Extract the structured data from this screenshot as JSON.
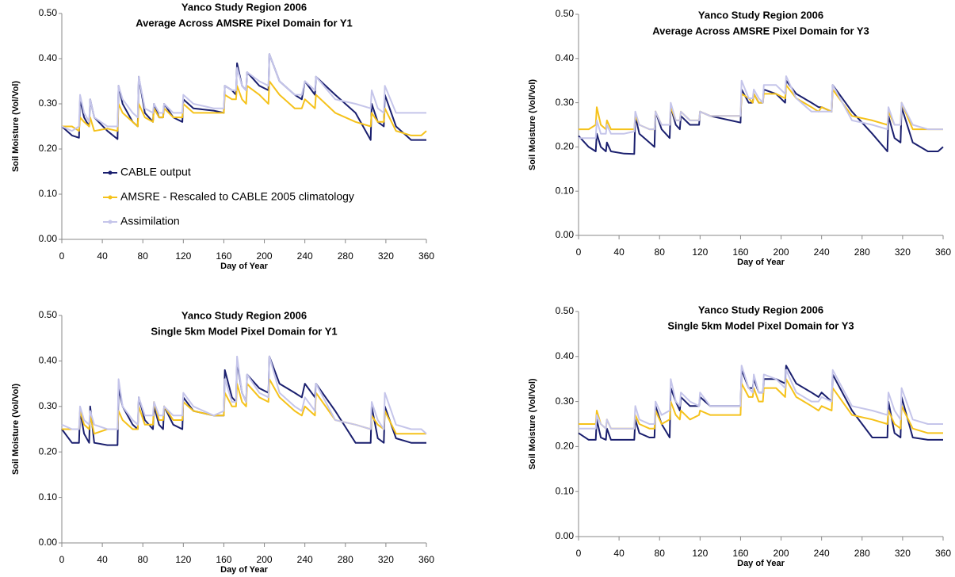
{
  "chart_data": [
    {
      "type": "line",
      "title": "Yanco Study Region 2006",
      "subtitle": "Average Across AMSRE Pixel Domain for Y1",
      "xlabel": "Day of Year",
      "ylabel": "Soil Moisture (Vol/Vol)",
      "legend": "left",
      "grid": false,
      "xlim": [
        0,
        360
      ],
      "xticks": [
        0,
        40,
        80,
        120,
        160,
        200,
        240,
        280,
        320,
        360
      ],
      "ylim": [
        0,
        0.5
      ],
      "yticks": [
        {
          "value": 0,
          "label": "0.00"
        },
        {
          "value": 0.1,
          "label": "0.10"
        },
        {
          "value": 0.2,
          "label": "0.20"
        },
        {
          "value": 0.3,
          "label": "0.30"
        },
        {
          "value": 0.4,
          "label": "0.40"
        },
        {
          "value": 0.5,
          "label": "0.50"
        }
      ],
      "x": [
        0,
        10,
        17,
        18,
        22,
        27,
        28,
        32,
        45,
        55,
        56,
        60,
        70,
        75,
        76,
        82,
        90,
        91,
        96,
        100,
        101,
        110,
        119,
        120,
        130,
        150,
        160,
        161,
        168,
        172,
        173,
        178,
        182,
        183,
        195,
        204,
        205,
        215,
        230,
        237,
        240,
        250,
        251,
        270,
        290,
        305,
        306,
        312,
        318,
        319,
        330,
        345,
        355,
        360
      ],
      "series": [
        {
          "name": "CABLE output",
          "color": "#1a1f6e",
          "values": [
            0.25,
            0.23,
            0.225,
            0.31,
            0.27,
            0.25,
            0.31,
            0.27,
            0.24,
            0.222,
            0.34,
            0.3,
            0.26,
            0.25,
            0.36,
            0.28,
            0.26,
            0.3,
            0.27,
            0.27,
            0.3,
            0.27,
            0.26,
            0.31,
            0.29,
            0.285,
            0.28,
            0.34,
            0.33,
            0.32,
            0.39,
            0.34,
            0.33,
            0.37,
            0.34,
            0.33,
            0.41,
            0.35,
            0.32,
            0.31,
            0.35,
            0.32,
            0.36,
            0.32,
            0.28,
            0.22,
            0.3,
            0.26,
            0.25,
            0.32,
            0.25,
            0.22,
            0.22,
            0.22
          ]
        },
        {
          "name": "AMSRE - Rescaled to CABLE 2005 climatology",
          "color": "#f5c21b",
          "values": [
            0.25,
            0.25,
            0.24,
            0.27,
            0.26,
            0.25,
            0.27,
            0.24,
            0.245,
            0.24,
            0.3,
            0.28,
            0.26,
            0.25,
            0.3,
            0.27,
            0.26,
            0.29,
            0.27,
            0.27,
            0.29,
            0.27,
            0.27,
            0.3,
            0.28,
            0.28,
            0.28,
            0.32,
            0.31,
            0.31,
            0.34,
            0.31,
            0.3,
            0.34,
            0.32,
            0.3,
            0.35,
            0.32,
            0.29,
            0.29,
            0.31,
            0.29,
            0.32,
            0.28,
            0.26,
            0.25,
            0.28,
            0.26,
            0.26,
            0.29,
            0.24,
            0.23,
            0.23,
            0.24
          ]
        },
        {
          "name": "Assimilation",
          "color": "#c5c5ea",
          "values": [
            0.25,
            0.24,
            0.25,
            0.32,
            0.28,
            0.26,
            0.31,
            0.27,
            0.25,
            0.25,
            0.34,
            0.31,
            0.28,
            0.27,
            0.36,
            0.29,
            0.28,
            0.3,
            0.28,
            0.28,
            0.3,
            0.28,
            0.28,
            0.32,
            0.3,
            0.29,
            0.29,
            0.34,
            0.33,
            0.33,
            0.38,
            0.34,
            0.33,
            0.37,
            0.35,
            0.34,
            0.41,
            0.35,
            0.32,
            0.32,
            0.35,
            0.33,
            0.36,
            0.31,
            0.3,
            0.29,
            0.33,
            0.29,
            0.28,
            0.34,
            0.28,
            0.28,
            0.28,
            0.28
          ]
        }
      ]
    },
    {
      "type": "line",
      "title": "Yanco Study Region 2006",
      "subtitle": "Average Across AMSRE Pixel Domain for Y3",
      "xlabel": "Day of Year",
      "ylabel": "Soil Moisture (Vol/Vol)",
      "grid": false,
      "xlim": [
        0,
        360
      ],
      "xticks": [
        0,
        40,
        80,
        120,
        160,
        200,
        240,
        280,
        320,
        360
      ],
      "ylim": [
        0,
        0.5
      ],
      "yticks": [
        {
          "value": 0,
          "label": "0.00"
        },
        {
          "value": 0.1,
          "label": "0.10"
        },
        {
          "value": 0.2,
          "label": "0.20"
        },
        {
          "value": 0.3,
          "label": "0.30"
        },
        {
          "value": 0.4,
          "label": "0.40"
        },
        {
          "value": 0.5,
          "label": "0.50"
        }
      ],
      "x": [
        0,
        10,
        17,
        18,
        22,
        27,
        28,
        32,
        45,
        55,
        56,
        60,
        70,
        75,
        76,
        82,
        90,
        91,
        96,
        100,
        101,
        110,
        119,
        120,
        130,
        150,
        160,
        161,
        168,
        172,
        173,
        178,
        182,
        183,
        195,
        204,
        205,
        215,
        230,
        237,
        240,
        250,
        251,
        270,
        290,
        305,
        306,
        312,
        318,
        319,
        330,
        345,
        355,
        360
      ],
      "series": [
        {
          "color": "#1a1f6e",
          "values": [
            0.225,
            0.2,
            0.19,
            0.23,
            0.2,
            0.19,
            0.21,
            0.19,
            0.185,
            0.184,
            0.27,
            0.23,
            0.21,
            0.2,
            0.28,
            0.24,
            0.22,
            0.29,
            0.25,
            0.24,
            0.27,
            0.25,
            0.25,
            0.28,
            0.27,
            0.26,
            0.255,
            0.33,
            0.3,
            0.3,
            0.32,
            0.3,
            0.3,
            0.33,
            0.32,
            0.3,
            0.35,
            0.32,
            0.3,
            0.29,
            0.29,
            0.28,
            0.34,
            0.28,
            0.23,
            0.19,
            0.27,
            0.22,
            0.21,
            0.29,
            0.21,
            0.19,
            0.19,
            0.2
          ]
        },
        {
          "color": "#f5c21b",
          "values": [
            0.24,
            0.24,
            0.25,
            0.29,
            0.25,
            0.24,
            0.26,
            0.24,
            0.24,
            0.24,
            0.27,
            0.25,
            0.24,
            0.24,
            0.28,
            0.25,
            0.25,
            0.29,
            0.26,
            0.26,
            0.28,
            0.26,
            0.26,
            0.28,
            0.27,
            0.27,
            0.27,
            0.32,
            0.31,
            0.3,
            0.32,
            0.3,
            0.3,
            0.32,
            0.32,
            0.31,
            0.34,
            0.31,
            0.29,
            0.28,
            0.29,
            0.28,
            0.33,
            0.27,
            0.26,
            0.25,
            0.28,
            0.25,
            0.25,
            0.3,
            0.24,
            0.24,
            0.24,
            0.24
          ]
        },
        {
          "color": "#c5c5ea",
          "values": [
            0.22,
            0.22,
            0.22,
            0.26,
            0.23,
            0.23,
            0.25,
            0.23,
            0.23,
            0.235,
            0.28,
            0.25,
            0.24,
            0.24,
            0.28,
            0.25,
            0.25,
            0.3,
            0.26,
            0.26,
            0.28,
            0.26,
            0.26,
            0.28,
            0.27,
            0.27,
            0.27,
            0.35,
            0.31,
            0.31,
            0.33,
            0.31,
            0.3,
            0.34,
            0.34,
            0.32,
            0.36,
            0.31,
            0.28,
            0.28,
            0.28,
            0.28,
            0.34,
            0.26,
            0.25,
            0.24,
            0.29,
            0.25,
            0.25,
            0.3,
            0.25,
            0.24,
            0.24,
            0.24
          ]
        }
      ]
    },
    {
      "type": "line",
      "title": "Yanco Study Region 2006",
      "subtitle": "Single 5km Model Pixel Domain for Y1",
      "xlabel": "Day of Year",
      "ylabel": "Soil Moisture (Vol/Vol)",
      "grid": false,
      "xlim": [
        0,
        360
      ],
      "xticks": [
        0,
        40,
        80,
        120,
        160,
        200,
        240,
        280,
        320,
        360
      ],
      "ylim": [
        0,
        0.5
      ],
      "yticks": [
        {
          "value": 0,
          "label": "0.00"
        },
        {
          "value": 0.1,
          "label": "0.10"
        },
        {
          "value": 0.2,
          "label": "0.20"
        },
        {
          "value": 0.3,
          "label": "0.30"
        },
        {
          "value": 0.4,
          "label": "0.40"
        },
        {
          "value": 0.5,
          "label": "0.50"
        }
      ],
      "x": [
        0,
        10,
        17,
        18,
        22,
        27,
        28,
        32,
        45,
        55,
        56,
        60,
        70,
        75,
        76,
        82,
        90,
        91,
        96,
        100,
        101,
        110,
        119,
        120,
        130,
        150,
        160,
        161,
        168,
        172,
        173,
        178,
        182,
        183,
        195,
        204,
        205,
        215,
        230,
        237,
        240,
        250,
        251,
        270,
        290,
        305,
        306,
        312,
        318,
        319,
        330,
        345,
        355,
        360
      ],
      "series": [
        {
          "color": "#1a1f6e",
          "values": [
            0.25,
            0.22,
            0.22,
            0.29,
            0.24,
            0.22,
            0.3,
            0.22,
            0.215,
            0.215,
            0.34,
            0.3,
            0.26,
            0.25,
            0.32,
            0.27,
            0.25,
            0.3,
            0.26,
            0.25,
            0.3,
            0.26,
            0.25,
            0.32,
            0.29,
            0.28,
            0.28,
            0.38,
            0.32,
            0.31,
            0.4,
            0.33,
            0.31,
            0.37,
            0.34,
            0.33,
            0.41,
            0.35,
            0.33,
            0.32,
            0.35,
            0.32,
            0.35,
            0.29,
            0.22,
            0.22,
            0.3,
            0.23,
            0.22,
            0.3,
            0.23,
            0.22,
            0.22,
            0.22
          ]
        },
        {
          "color": "#f5c21b",
          "values": [
            0.25,
            0.25,
            0.25,
            0.29,
            0.26,
            0.25,
            0.28,
            0.24,
            0.25,
            0.25,
            0.29,
            0.27,
            0.25,
            0.25,
            0.3,
            0.26,
            0.26,
            0.31,
            0.27,
            0.27,
            0.3,
            0.27,
            0.27,
            0.31,
            0.29,
            0.28,
            0.28,
            0.33,
            0.3,
            0.3,
            0.35,
            0.31,
            0.3,
            0.35,
            0.32,
            0.31,
            0.36,
            0.32,
            0.29,
            0.28,
            0.3,
            0.28,
            0.33,
            0.27,
            0.26,
            0.25,
            0.28,
            0.26,
            0.25,
            0.29,
            0.24,
            0.24,
            0.24,
            0.24
          ]
        },
        {
          "color": "#c5c5ea",
          "values": [
            0.26,
            0.25,
            0.25,
            0.3,
            0.27,
            0.26,
            0.29,
            0.26,
            0.25,
            0.25,
            0.36,
            0.3,
            0.27,
            0.26,
            0.32,
            0.28,
            0.28,
            0.31,
            0.28,
            0.28,
            0.3,
            0.28,
            0.28,
            0.33,
            0.3,
            0.28,
            0.29,
            0.36,
            0.31,
            0.31,
            0.41,
            0.33,
            0.31,
            0.37,
            0.33,
            0.32,
            0.41,
            0.33,
            0.3,
            0.29,
            0.32,
            0.29,
            0.35,
            0.27,
            0.26,
            0.25,
            0.31,
            0.27,
            0.25,
            0.33,
            0.26,
            0.25,
            0.25,
            0.24
          ]
        }
      ]
    },
    {
      "type": "line",
      "title": "Yanco Study Region 2006",
      "subtitle": "Single 5km Model Pixel Domain for Y3",
      "xlabel": "Day of Year",
      "ylabel": "Soil Moisture (Vol/Vol)",
      "grid": false,
      "xlim": [
        0,
        360
      ],
      "xticks": [
        0,
        40,
        80,
        120,
        160,
        200,
        240,
        280,
        320,
        360
      ],
      "ylim": [
        0,
        0.5
      ],
      "yticks": [
        {
          "value": 0,
          "label": "0.00"
        },
        {
          "value": 0.1,
          "label": "0.10"
        },
        {
          "value": 0.2,
          "label": "0.20"
        },
        {
          "value": 0.3,
          "label": "0.30"
        },
        {
          "value": 0.4,
          "label": "0.40"
        },
        {
          "value": 0.5,
          "label": "0.50"
        }
      ],
      "x": [
        0,
        10,
        17,
        18,
        22,
        27,
        28,
        32,
        45,
        55,
        56,
        60,
        70,
        75,
        76,
        82,
        90,
        91,
        96,
        100,
        101,
        110,
        119,
        120,
        130,
        150,
        160,
        161,
        168,
        172,
        173,
        178,
        182,
        183,
        195,
        204,
        205,
        215,
        230,
        237,
        240,
        250,
        251,
        270,
        290,
        305,
        306,
        312,
        318,
        319,
        330,
        345,
        355,
        360
      ],
      "series": [
        {
          "color": "#1a1f6e",
          "values": [
            0.23,
            0.215,
            0.215,
            0.26,
            0.22,
            0.215,
            0.24,
            0.215,
            0.215,
            0.215,
            0.26,
            0.23,
            0.22,
            0.22,
            0.29,
            0.25,
            0.22,
            0.33,
            0.3,
            0.28,
            0.31,
            0.29,
            0.29,
            0.31,
            0.29,
            0.29,
            0.29,
            0.37,
            0.33,
            0.33,
            0.35,
            0.32,
            0.32,
            0.35,
            0.35,
            0.34,
            0.38,
            0.34,
            0.32,
            0.31,
            0.32,
            0.3,
            0.36,
            0.28,
            0.22,
            0.22,
            0.3,
            0.23,
            0.22,
            0.31,
            0.22,
            0.215,
            0.215,
            0.215
          ]
        },
        {
          "color": "#f5c21b",
          "values": [
            0.25,
            0.25,
            0.25,
            0.28,
            0.25,
            0.24,
            0.26,
            0.24,
            0.24,
            0.24,
            0.27,
            0.25,
            0.24,
            0.24,
            0.28,
            0.25,
            0.26,
            0.3,
            0.27,
            0.26,
            0.28,
            0.26,
            0.27,
            0.28,
            0.27,
            0.27,
            0.27,
            0.34,
            0.31,
            0.31,
            0.33,
            0.3,
            0.3,
            0.33,
            0.33,
            0.31,
            0.35,
            0.31,
            0.29,
            0.28,
            0.29,
            0.28,
            0.33,
            0.27,
            0.26,
            0.25,
            0.28,
            0.25,
            0.24,
            0.29,
            0.24,
            0.23,
            0.23,
            0.23
          ]
        },
        {
          "color": "#c5c5ea",
          "values": [
            0.24,
            0.24,
            0.24,
            0.27,
            0.25,
            0.24,
            0.26,
            0.24,
            0.24,
            0.24,
            0.29,
            0.26,
            0.25,
            0.25,
            0.3,
            0.27,
            0.28,
            0.35,
            0.3,
            0.29,
            0.32,
            0.3,
            0.29,
            0.32,
            0.29,
            0.29,
            0.29,
            0.38,
            0.33,
            0.32,
            0.36,
            0.32,
            0.32,
            0.36,
            0.35,
            0.33,
            0.37,
            0.32,
            0.3,
            0.3,
            0.31,
            0.3,
            0.37,
            0.29,
            0.28,
            0.27,
            0.32,
            0.28,
            0.26,
            0.33,
            0.26,
            0.25,
            0.25,
            0.25
          ]
        }
      ]
    }
  ]
}
